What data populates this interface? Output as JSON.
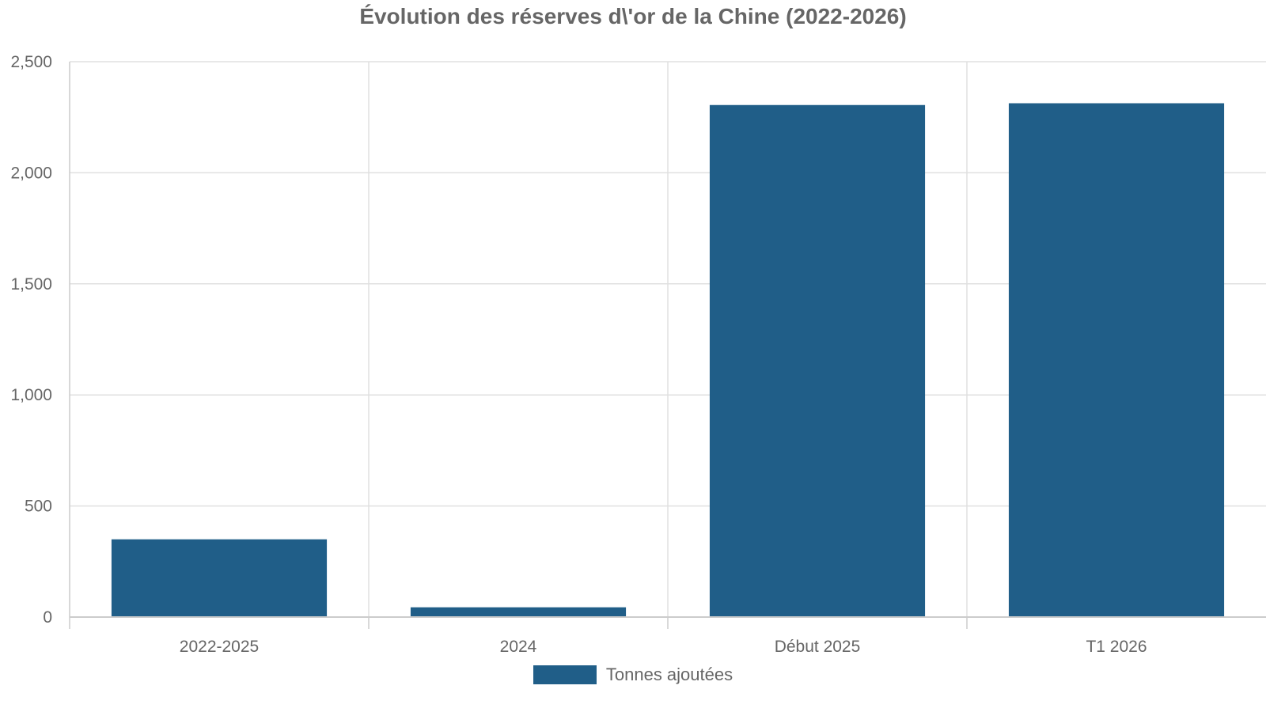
{
  "chart_data": {
    "type": "bar",
    "title": "Évolution des réserves d\\'or de la Chine (2022-2026)",
    "categories": [
      "2022-2025",
      "2024",
      "Début 2025",
      "T1 2026"
    ],
    "series": [
      {
        "name": "Tonnes ajoutées",
        "values": [
          350,
          44,
          2305,
          2313
        ],
        "color": "#205e88"
      }
    ],
    "xlabel": "",
    "ylabel": "",
    "ylim": [
      0,
      2500
    ],
    "yticks": [
      0,
      500,
      1000,
      1500,
      2000,
      2500
    ],
    "ytick_labels": [
      "0",
      "500",
      "1,000",
      "1,500",
      "2,000",
      "2,500"
    ],
    "grid": true,
    "legend_position": "bottom-center"
  }
}
